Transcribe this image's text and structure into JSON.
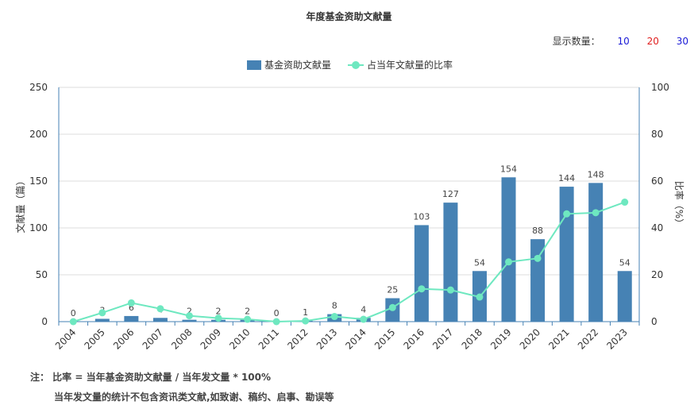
{
  "header": {
    "title": "年度基金资助文献量"
  },
  "display_count": {
    "label": "显示数量：",
    "options": [
      {
        "value": "10",
        "color": "#1a1ad6"
      },
      {
        "value": "20",
        "color": "#e01f1f"
      },
      {
        "value": "30",
        "color": "#1a1ad6"
      }
    ]
  },
  "notes": {
    "line1": "注： 比率 = 当年基金资助文献量 / 当年发文量 * 100%",
    "line2": "当年发文量的统计不包含资讯类文献,如致谢、稿约、启事、勘误等"
  },
  "chart_data": {
    "type": "bar",
    "categories": [
      "2004",
      "2005",
      "2006",
      "2007",
      "2008",
      "2009",
      "2010",
      "2011",
      "2012",
      "2013",
      "2014",
      "2015",
      "2016",
      "2017",
      "2018",
      "2019",
      "2020",
      "2021",
      "2022",
      "2023"
    ],
    "series": [
      {
        "name": "基金资助文献量",
        "type": "bar",
        "axis": "left",
        "color": "#4682b4",
        "values": [
          0,
          3,
          6,
          4,
          2,
          2,
          2,
          0,
          1,
          8,
          4,
          25,
          103,
          127,
          54,
          154,
          88,
          144,
          148,
          54
        ]
      },
      {
        "name": "占当年文献量的比率",
        "type": "line",
        "axis": "right",
        "color": "#6ee8c0",
        "values": [
          0,
          3.8,
          8,
          5.5,
          2.5,
          1.5,
          1,
          0,
          0.3,
          2.2,
          1,
          6,
          14,
          13.5,
          10.5,
          25.5,
          27,
          46,
          46.5,
          51
        ]
      }
    ],
    "ylabel_left": "文献量（篇）",
    "ylabel_right": "比率（%）",
    "ylim_left": [
      0,
      250
    ],
    "yticks_left": [
      "0",
      "50",
      "100",
      "150",
      "200",
      "250"
    ],
    "ylim_right": [
      0,
      100
    ],
    "yticks_right": [
      "0",
      "20",
      "40",
      "60",
      "80",
      "100"
    ],
    "grid": true,
    "legend_position": "top"
  }
}
